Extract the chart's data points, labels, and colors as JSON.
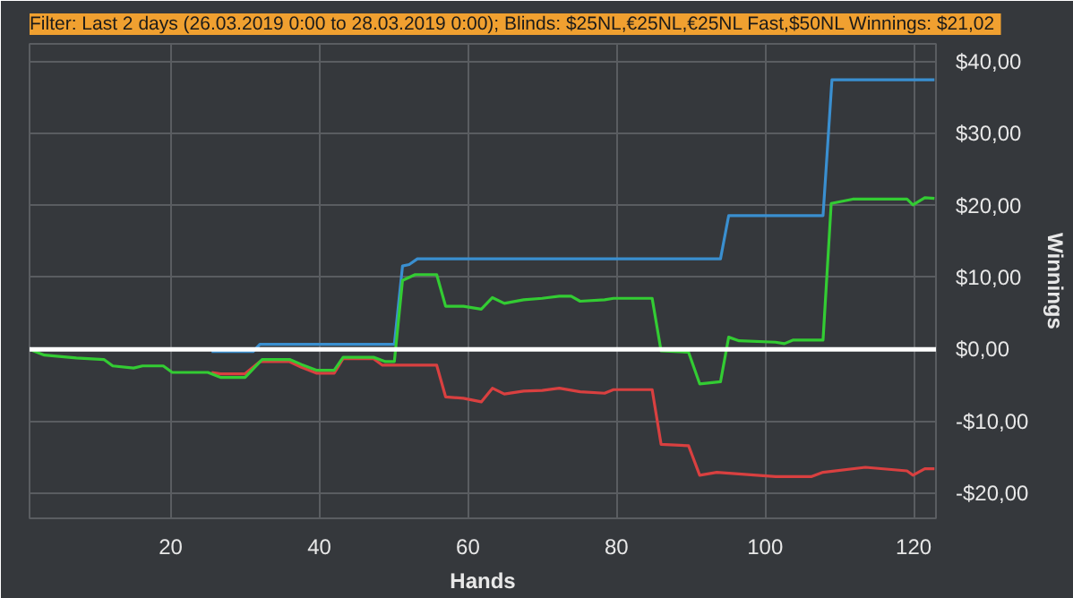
{
  "chart_data": {
    "type": "line",
    "title": "Filter: Last 2 days (26.03.2019 0:00 to 28.03.2019 0:00); Blinds: $25NL,€25NL,€25NL Fast,$50NL  Winnings: $21,02",
    "xlabel": "Hands",
    "ylabel": "Winnings",
    "xlim": [
      1,
      123
    ],
    "xticks": [
      20,
      40,
      60,
      80,
      100,
      120
    ],
    "ylim": [
      -23.5,
      42.5
    ],
    "yticks": [
      {
        "value": -20,
        "label": "-$20,00"
      },
      {
        "value": -10,
        "label": "-$10,00"
      },
      {
        "value": 0,
        "label": "$0,00"
      },
      {
        "value": 10,
        "label": "$10,00"
      },
      {
        "value": 20,
        "label": "$20,00"
      },
      {
        "value": 30,
        "label": "$30,00"
      },
      {
        "value": 40,
        "label": "$40,00"
      }
    ],
    "grid": true,
    "line_style": "solid",
    "ref_lines": [
      {
        "axis": "y",
        "value": 0,
        "color": "#ffffff"
      }
    ],
    "series": [
      {
        "color": "#d94040",
        "x": [
          25.5,
          26.7,
          30,
          32,
          36,
          37.6,
          39.6,
          42,
          43.2,
          47.3,
          48.5,
          55.8,
          57,
          59.4,
          61.8,
          63.3,
          64.9,
          67.5,
          70,
          72.3,
          75.1,
          78.4,
          79.6,
          84.8,
          86,
          89.7,
          91.2,
          93.5,
          101.4,
          106.2,
          107.8,
          113.5,
          119.1,
          119.9,
          121.5,
          122.8
        ],
        "values": [
          -3.2,
          -3.4,
          -3.4,
          -1.7,
          -1.7,
          -2.5,
          -3.3,
          -3.3,
          -1.3,
          -1.3,
          -2.2,
          -2.2,
          -6.6,
          -6.8,
          -7.3,
          -5.4,
          -6.2,
          -5.8,
          -5.7,
          -5.4,
          -5.9,
          -6.1,
          -5.6,
          -5.6,
          -13.2,
          -13.4,
          -17.5,
          -17.1,
          -17.7,
          -17.7,
          -17.1,
          -16.4,
          -16.9,
          -17.5,
          -16.6,
          -16.6
        ]
      },
      {
        "color": "#3a8fd0",
        "x": [
          25.5,
          31.1,
          32,
          50.1,
          51.2,
          52.1,
          53.2,
          70,
          94,
          95.1,
          107.8,
          109,
          122.8
        ],
        "values": [
          -0.3,
          -0.3,
          0.7,
          0.7,
          11.6,
          11.8,
          12.6,
          12.6,
          12.6,
          18.6,
          18.6,
          37.5,
          37.5
        ]
      },
      {
        "color": "#33cc33",
        "x": [
          1,
          3,
          7.3,
          11,
          12.2,
          15,
          16.2,
          19,
          20.2,
          25,
          26.7,
          30,
          32.3,
          36,
          37.6,
          39.6,
          42,
          43.2,
          47.3,
          48.9,
          50.1,
          51.2,
          52.9,
          55.8,
          57,
          59.4,
          61.8,
          63.3,
          64.9,
          67.5,
          70,
          70.7,
          72.3,
          73.9,
          75.1,
          78.4,
          79.6,
          84.8,
          86,
          89.7,
          91.2,
          94,
          95.1,
          96.5,
          101.4,
          102.6,
          103.8,
          107.8,
          108.9,
          111.8,
          119.1,
          119.9,
          121.5,
          122.8
        ],
        "values": [
          0,
          -0.8,
          -1.2,
          -1.4,
          -2.3,
          -2.6,
          -2.3,
          -2.3,
          -3.2,
          -3.2,
          -3.9,
          -3.9,
          -1.4,
          -1.4,
          -2.1,
          -2.9,
          -2.9,
          -1.1,
          -1.1,
          -1.7,
          -1.7,
          9.6,
          10.4,
          10.4,
          6.0,
          6.0,
          5.6,
          7.2,
          6.4,
          6.9,
          7.1,
          7.2,
          7.4,
          7.4,
          6.7,
          6.9,
          7.1,
          7.1,
          -0.2,
          -0.4,
          -4.8,
          -4.5,
          1.7,
          1.2,
          1.0,
          0.8,
          1.3,
          1.3,
          20.3,
          20.9,
          20.9,
          20.1,
          21.1,
          21.0
        ]
      }
    ]
  }
}
